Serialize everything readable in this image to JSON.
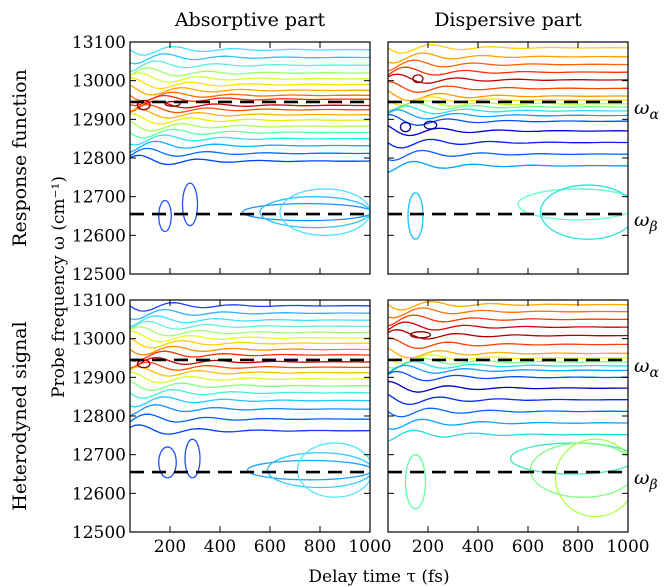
{
  "chart_data": {
    "type": "contour",
    "column_titles": [
      "Absorptive part",
      "Dispersive part"
    ],
    "row_titles": [
      "Response function",
      "Heterodyned signal"
    ],
    "xlabel": "Delay time τ (fs)",
    "ylabel": "Probe frequency ω (cm⁻¹)",
    "xlim": [
      40,
      1000
    ],
    "ylim": [
      12500,
      13100
    ],
    "xticks": [
      200,
      400,
      600,
      800,
      1000
    ],
    "yticks": [
      12500,
      12600,
      12700,
      12800,
      12900,
      13000,
      13100
    ],
    "reference_lines": [
      {
        "name": "ω_α",
        "label": "ωα",
        "y": 12945
      },
      {
        "name": "ω_β",
        "label": "ωβ",
        "y": 12655
      }
    ],
    "panels": [
      {
        "row": 0,
        "col": 0,
        "band_levels": [
          {
            "y": 13080,
            "color": "#40e0ff"
          },
          {
            "y": 13060,
            "color": "#2ec5ff"
          },
          {
            "y": 13040,
            "color": "#58f0d8"
          },
          {
            "y": 13020,
            "color": "#9aff66"
          },
          {
            "y": 13005,
            "color": "#d4ff2e"
          },
          {
            "y": 12990,
            "color": "#ffe000"
          },
          {
            "y": 12975,
            "color": "#ffa800"
          },
          {
            "y": 12962,
            "color": "#ff6a00"
          },
          {
            "y": 12952,
            "color": "#ff2a00"
          },
          {
            "y": 12936,
            "color": "#d60000"
          },
          {
            "y": 12925,
            "color": "#ff5000"
          },
          {
            "y": 12912,
            "color": "#ffb000"
          },
          {
            "y": 12898,
            "color": "#e8f000"
          },
          {
            "y": 12882,
            "color": "#a6ff50"
          },
          {
            "y": 12866,
            "color": "#60ffa0"
          },
          {
            "y": 12850,
            "color": "#28e8e8"
          },
          {
            "y": 12832,
            "color": "#10b0ff"
          },
          {
            "y": 12812,
            "color": "#0070ff"
          },
          {
            "y": 12792,
            "color": "#0040ff"
          }
        ],
        "loops": [
          {
            "x": 95,
            "y": 12937,
            "rx": 25,
            "ry": 12,
            "color": "#8b0000"
          },
          {
            "x": 210,
            "y": 12940,
            "rx": 30,
            "ry": 6,
            "color": "#8b0000"
          },
          {
            "x": 180,
            "y": 12650,
            "rx": 25,
            "ry": 40,
            "color": "#2050ff"
          },
          {
            "x": 280,
            "y": 12680,
            "rx": 30,
            "ry": 55,
            "color": "#2050ff"
          },
          {
            "x": 750,
            "y": 12660,
            "rx": 260,
            "ry": 22,
            "color": "#1a90ff"
          },
          {
            "x": 780,
            "y": 12660,
            "rx": 220,
            "ry": 40,
            "color": "#30c0ff"
          },
          {
            "x": 820,
            "y": 12660,
            "rx": 180,
            "ry": 60,
            "color": "#50e0ff"
          }
        ]
      },
      {
        "row": 0,
        "col": 1,
        "band_levels": [
          {
            "y": 13085,
            "color": "#ffd000"
          },
          {
            "y": 13062,
            "color": "#ffa000"
          },
          {
            "y": 13042,
            "color": "#ff6000"
          },
          {
            "y": 13022,
            "color": "#ff3000"
          },
          {
            "y": 13002,
            "color": "#c00000"
          },
          {
            "y": 12980,
            "color": "#ff4000"
          },
          {
            "y": 12960,
            "color": "#ff9a00"
          },
          {
            "y": 12950,
            "color": "#ffe000"
          },
          {
            "y": 12940,
            "color": "#c8ff30"
          },
          {
            "y": 12932,
            "color": "#70ff90"
          },
          {
            "y": 12922,
            "color": "#30e0e0"
          },
          {
            "y": 12910,
            "color": "#10a0ff"
          },
          {
            "y": 12895,
            "color": "#0050ff"
          },
          {
            "y": 12870,
            "color": "#0000d0"
          },
          {
            "y": 12840,
            "color": "#0020ff"
          },
          {
            "y": 12810,
            "color": "#0060ff"
          },
          {
            "y": 12780,
            "color": "#00a0ff"
          }
        ],
        "loops": [
          {
            "x": 160,
            "y": 13005,
            "rx": 20,
            "ry": 10,
            "color": "#8b0000"
          },
          {
            "x": 110,
            "y": 12880,
            "rx": 20,
            "ry": 12,
            "color": "#000090"
          },
          {
            "x": 210,
            "y": 12885,
            "rx": 25,
            "ry": 10,
            "color": "#000090"
          },
          {
            "x": 150,
            "y": 12650,
            "rx": 30,
            "ry": 60,
            "color": "#20c0ff"
          },
          {
            "x": 800,
            "y": 12680,
            "rx": 240,
            "ry": 40,
            "color": "#60ffd0"
          },
          {
            "x": 840,
            "y": 12660,
            "rx": 190,
            "ry": 70,
            "color": "#30e0e0"
          }
        ]
      },
      {
        "row": 1,
        "col": 0,
        "band_levels": [
          {
            "y": 13085,
            "color": "#2040ff"
          },
          {
            "y": 13066,
            "color": "#30b0ff"
          },
          {
            "y": 13048,
            "color": "#40e0ff"
          },
          {
            "y": 13032,
            "color": "#60f0d0"
          },
          {
            "y": 13016,
            "color": "#a0ff70"
          },
          {
            "y": 13002,
            "color": "#e0ff20"
          },
          {
            "y": 12988,
            "color": "#ffd000"
          },
          {
            "y": 12972,
            "color": "#ff8a00"
          },
          {
            "y": 12958,
            "color": "#ff3000"
          },
          {
            "y": 12940,
            "color": "#c00000"
          },
          {
            "y": 12926,
            "color": "#ff5000"
          },
          {
            "y": 12912,
            "color": "#ffc000"
          },
          {
            "y": 12896,
            "color": "#d0ff30"
          },
          {
            "y": 12878,
            "color": "#80ff80"
          },
          {
            "y": 12860,
            "color": "#40f0d0"
          },
          {
            "y": 12840,
            "color": "#20c8ff"
          },
          {
            "y": 12818,
            "color": "#1090ff"
          },
          {
            "y": 12792,
            "color": "#0060ff"
          },
          {
            "y": 12762,
            "color": "#0040ff"
          }
        ],
        "loops": [
          {
            "x": 95,
            "y": 12935,
            "rx": 25,
            "ry": 10,
            "color": "#8b0000"
          },
          {
            "x": 190,
            "y": 12680,
            "rx": 35,
            "ry": 40,
            "color": "#2050ff"
          },
          {
            "x": 290,
            "y": 12690,
            "rx": 30,
            "ry": 50,
            "color": "#2050ff"
          },
          {
            "x": 760,
            "y": 12660,
            "rx": 250,
            "ry": 25,
            "color": "#20a0ff"
          },
          {
            "x": 800,
            "y": 12660,
            "rx": 210,
            "ry": 45,
            "color": "#30c8ff"
          },
          {
            "x": 860,
            "y": 12660,
            "rx": 150,
            "ry": 70,
            "color": "#50e8ff"
          }
        ]
      },
      {
        "row": 1,
        "col": 1,
        "band_levels": [
          {
            "y": 13088,
            "color": "#ffa800"
          },
          {
            "y": 13070,
            "color": "#ff7000"
          },
          {
            "y": 13050,
            "color": "#ff3800"
          },
          {
            "y": 13030,
            "color": "#d00000"
          },
          {
            "y": 13008,
            "color": "#b00000"
          },
          {
            "y": 12985,
            "color": "#ff4000"
          },
          {
            "y": 12962,
            "color": "#ffb000"
          },
          {
            "y": 12950,
            "color": "#e8ff20"
          },
          {
            "y": 12940,
            "color": "#80ff80"
          },
          {
            "y": 12930,
            "color": "#30e0e0"
          },
          {
            "y": 12918,
            "color": "#10a0ff"
          },
          {
            "y": 12900,
            "color": "#0050ff"
          },
          {
            "y": 12872,
            "color": "#0000c0"
          },
          {
            "y": 12842,
            "color": "#0028ff"
          },
          {
            "y": 12812,
            "color": "#0068ff"
          },
          {
            "y": 12782,
            "color": "#00a8ff"
          },
          {
            "y": 12752,
            "color": "#20d8e8"
          }
        ],
        "loops": [
          {
            "x": 170,
            "y": 13010,
            "rx": 40,
            "ry": 8,
            "color": "#8b0000"
          },
          {
            "x": 150,
            "y": 12630,
            "rx": 40,
            "ry": 70,
            "color": "#60ffa0"
          },
          {
            "x": 780,
            "y": 12690,
            "rx": 250,
            "ry": 40,
            "color": "#40e8c0"
          },
          {
            "x": 820,
            "y": 12660,
            "rx": 210,
            "ry": 70,
            "color": "#80ff80"
          },
          {
            "x": 870,
            "y": 12640,
            "rx": 160,
            "ry": 100,
            "color": "#a8ff50"
          }
        ]
      }
    ]
  }
}
